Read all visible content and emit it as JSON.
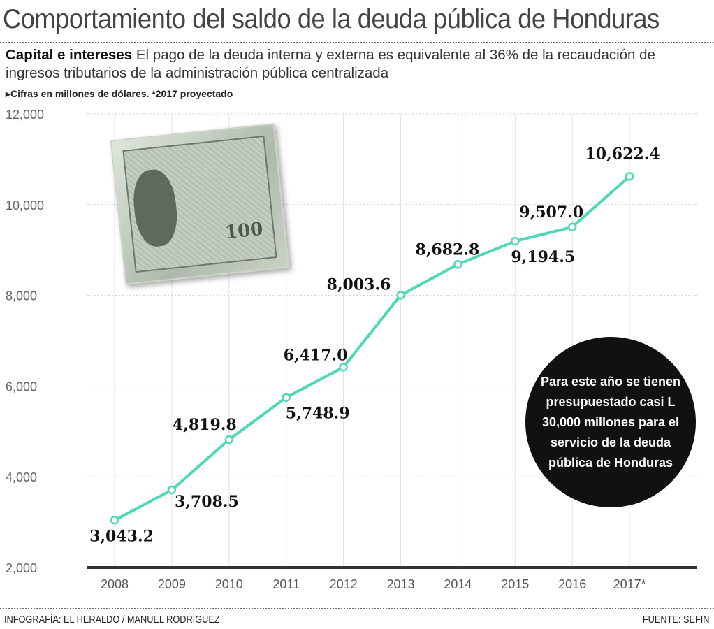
{
  "title": "Comportamiento del saldo de la deuda pública de Honduras",
  "subtitle_bold": "Capital e intereses",
  "subtitle": "El pago de la deuda interna y externa es equivalente al 36% de la recaudación de ingresos tributarios de la administración pública centralizada",
  "note": "▸Cifras en millones de dólares.  *2017 proyectado",
  "bubble": "Para este año se tienen presupuestado casi L 30,000 millones para el servicio de la deuda pública de Honduras",
  "bill_text": "100",
  "footer_left": "INFOGRAFÍA: EL HERALDO / MANUEL RODRÍGUEZ",
  "footer_right": "FUENTE: SEFIN",
  "colors": {
    "line": "#4fd8b8",
    "axis": "#333333",
    "grid": "#cccccc"
  },
  "chart_data": {
    "type": "line",
    "categories": [
      "2008",
      "2009",
      "2010",
      "2011",
      "2012",
      "2013",
      "2014",
      "2015",
      "2016",
      "2017*"
    ],
    "values": [
      3043.2,
      3708.5,
      4819.8,
      5748.9,
      6417.0,
      8003.6,
      8682.8,
      9194.5,
      9507.0,
      10622.4
    ],
    "data_labels": [
      "3,043.2",
      "3,708.5",
      "4,819.8",
      "5,748.9",
      "6,417.0",
      "8,003.6",
      "8,682.8",
      "9,194.5",
      "9,507.0",
      "10,622.4"
    ],
    "ylim": [
      2000,
      12000
    ],
    "yticks": [
      2000,
      4000,
      6000,
      8000,
      10000,
      12000
    ],
    "ytick_labels": [
      "2,000",
      "4,000",
      "6,000",
      "8,000",
      "10,000",
      "12,000"
    ],
    "grid": true,
    "xlabel": "",
    "ylabel": ""
  }
}
